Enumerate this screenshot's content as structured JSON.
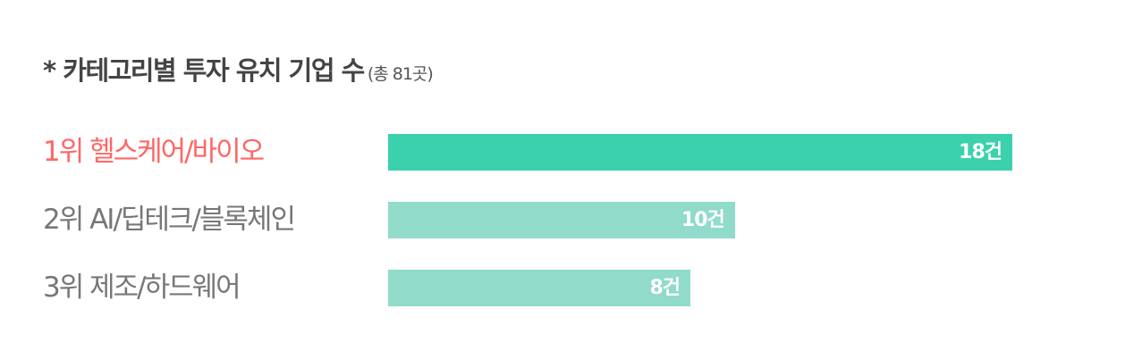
{
  "chart_data": {
    "type": "bar",
    "orientation": "horizontal",
    "title": "* 카테고리별 투자 유치 기업 수",
    "subtitle": "(총 81곳)",
    "categories": [
      "1위 헬스케어/바이오",
      "2위 AI/딥테크/블록체인",
      "3위 제조/하드웨어"
    ],
    "values": [
      18,
      10,
      8
    ],
    "data_labels": [
      "18건",
      "10건",
      "8건"
    ],
    "grid": false,
    "colors": {
      "highlight_bar": "#3bd1ad",
      "bar": "#90dbc9",
      "highlight_label": "#ff6666",
      "label": "#777777",
      "title": "#444444"
    }
  }
}
